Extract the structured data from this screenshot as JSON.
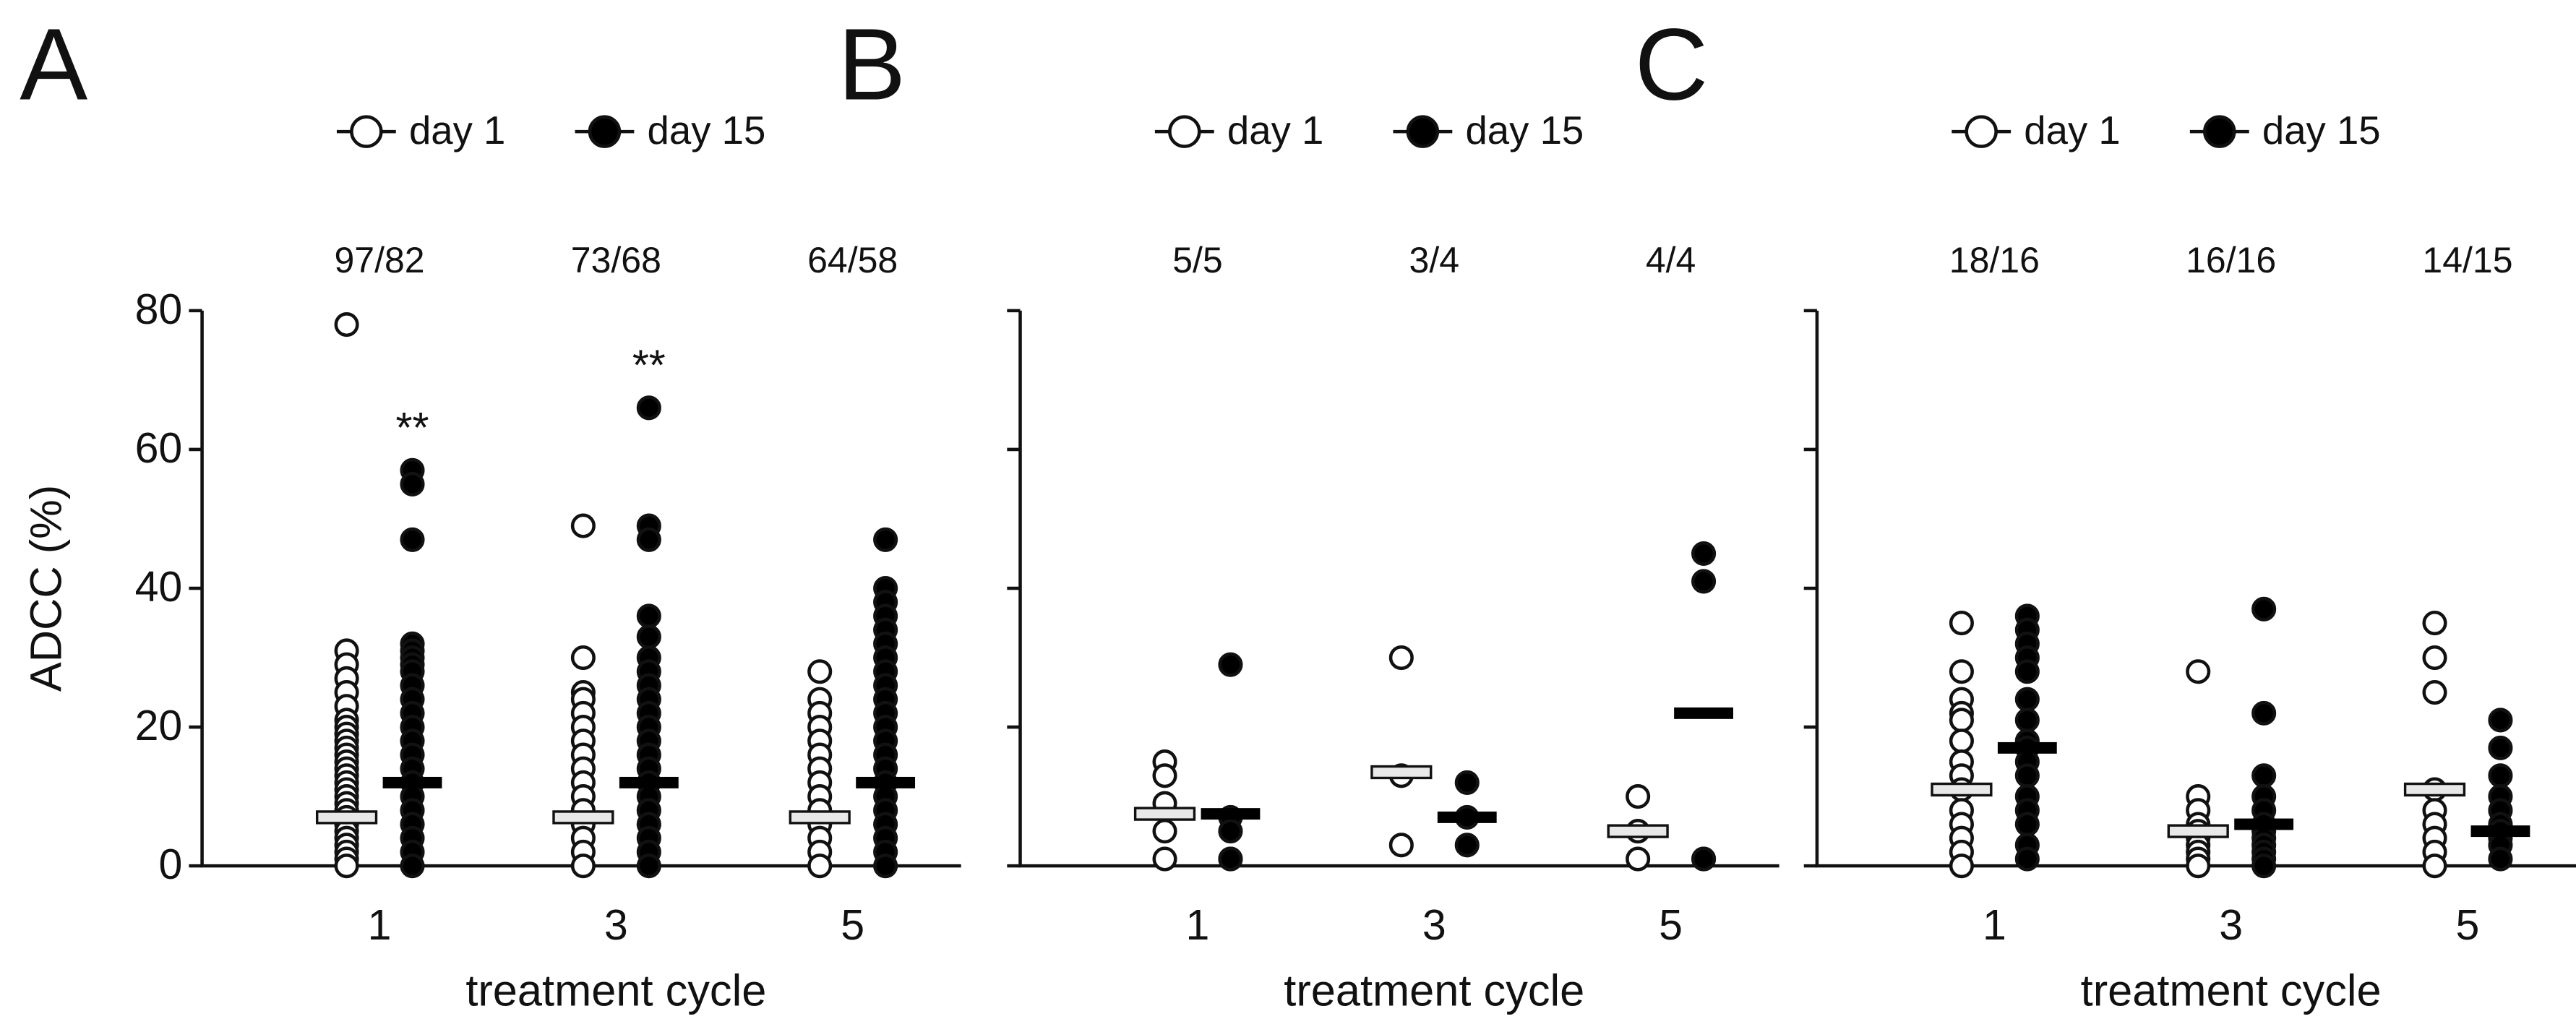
{
  "chart_data": [
    {
      "type": "strip",
      "panel": "A",
      "ylabel": "ADCC (%)",
      "xlabel": "treatment cycle",
      "categories": [
        "1",
        "3",
        "5"
      ],
      "group_labels": [
        "97/82",
        "73/68",
        "64/58"
      ],
      "ylim": [
        0,
        80
      ],
      "yticks": [
        0,
        20,
        40,
        60,
        80
      ],
      "show_ytick_labels": true,
      "annotations": [
        {
          "category": "1",
          "text": "**"
        },
        {
          "category": "3",
          "text": "**"
        }
      ],
      "series": [
        {
          "name": "day 1",
          "color": "#ffffff",
          "medians": [
            7,
            7,
            7
          ],
          "values": [
            [
              78,
              31,
              29,
              27,
              25,
              23,
              21,
              20,
              19,
              18,
              17,
              16,
              15,
              14,
              13,
              12,
              11,
              10,
              9,
              8,
              7,
              6,
              5,
              4,
              3,
              2,
              1,
              0
            ],
            [
              49,
              30,
              25,
              24,
              22,
              20,
              18,
              16,
              14,
              12,
              10,
              8,
              6,
              4,
              2,
              0
            ],
            [
              28,
              24,
              22,
              20,
              18,
              16,
              14,
              12,
              10,
              8,
              6,
              4,
              2,
              0
            ]
          ]
        },
        {
          "name": "day 15",
          "color": "#000000",
          "medians": [
            12,
            12,
            12
          ],
          "values": [
            [
              57,
              55,
              47,
              32,
              31,
              30,
              29,
              28,
              26,
              24,
              22,
              20,
              18,
              16,
              14,
              12,
              10,
              8,
              6,
              4,
              2,
              0
            ],
            [
              66,
              49,
              47,
              36,
              33,
              30,
              28,
              26,
              24,
              22,
              20,
              18,
              16,
              14,
              12,
              10,
              8,
              6,
              4,
              2,
              0
            ],
            [
              47,
              40,
              38,
              36,
              34,
              32,
              30,
              28,
              26,
              24,
              22,
              20,
              18,
              16,
              14,
              12,
              10,
              8,
              6,
              4,
              2,
              0
            ]
          ]
        }
      ]
    },
    {
      "type": "strip",
      "panel": "B",
      "xlabel": "treatment cycle",
      "categories": [
        "1",
        "3",
        "5"
      ],
      "group_labels": [
        "5/5",
        "3/4",
        "4/4"
      ],
      "ylim": [
        0,
        80
      ],
      "yticks": [
        0,
        20,
        40,
        60,
        80
      ],
      "show_ytick_labels": false,
      "series": [
        {
          "name": "day 1",
          "color": "#ffffff",
          "medians": [
            7.5,
            13.5,
            5
          ],
          "values": [
            [
              15,
              13,
              9,
              5,
              1
            ],
            [
              30,
              13,
              3
            ],
            [
              10,
              5,
              5,
              1
            ]
          ]
        },
        {
          "name": "day 15",
          "color": "#000000",
          "medians": [
            7.5,
            7,
            22
          ],
          "values": [
            [
              29,
              7,
              5,
              1,
              1
            ],
            [
              12,
              7,
              3
            ],
            [
              45,
              41,
              1,
              1
            ]
          ]
        }
      ]
    },
    {
      "type": "strip",
      "panel": "C",
      "xlabel": "treatment cycle",
      "categories": [
        "1",
        "3",
        "5"
      ],
      "group_labels": [
        "18/16",
        "16/16",
        "14/15"
      ],
      "ylim": [
        0,
        80
      ],
      "yticks": [
        0,
        20,
        40,
        60,
        80
      ],
      "show_ytick_labels": false,
      "series": [
        {
          "name": "day 1",
          "color": "#ffffff",
          "medians": [
            11,
            5,
            11
          ],
          "values": [
            [
              35,
              28,
              24,
              22,
              21,
              18,
              15,
              13,
              11,
              8,
              6,
              4,
              2,
              0
            ],
            [
              28,
              10,
              8,
              6,
              5,
              4,
              3,
              2,
              1,
              0
            ],
            [
              35,
              30,
              25,
              11,
              8,
              6,
              4,
              2,
              0
            ]
          ]
        },
        {
          "name": "day 15",
          "color": "#000000",
          "medians": [
            17,
            6,
            5
          ],
          "values": [
            [
              36,
              34,
              32,
              30,
              28,
              24,
              21,
              18,
              17,
              15,
              13,
              10,
              8,
              6,
              3,
              1
            ],
            [
              37,
              22,
              13,
              10,
              8,
              6,
              5,
              4,
              3,
              2,
              1,
              0
            ],
            [
              21,
              17,
              13,
              10,
              8,
              6,
              5,
              4,
              3,
              1
            ]
          ]
        }
      ]
    }
  ]
}
